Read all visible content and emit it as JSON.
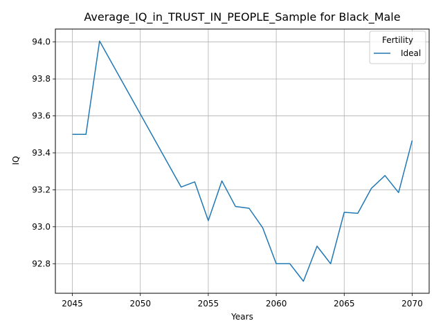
{
  "chart_data": {
    "type": "line",
    "title": "Average_IQ_in_TRUST_IN_PEOPLE_Sample for Black_Male",
    "xlabel": "Years",
    "ylabel": "IQ",
    "xlim": [
      2043.75,
      2071.25
    ],
    "ylim": [
      92.64,
      94.07
    ],
    "xticks": [
      2045,
      2050,
      2055,
      2060,
      2065,
      2070
    ],
    "yticks": [
      92.8,
      93.0,
      93.2,
      93.4,
      93.6,
      93.8,
      94.0
    ],
    "ytick_labels": [
      "92.8",
      "93.0",
      "93.2",
      "93.4",
      "93.6",
      "93.8",
      "94.0"
    ],
    "grid": true,
    "legend": {
      "title": "Fertility",
      "placement": "top-right"
    },
    "x": [
      2045,
      2046,
      2047,
      2053,
      2054,
      2055,
      2056,
      2057,
      2058,
      2059,
      2060,
      2061,
      2062,
      2063,
      2064,
      2065,
      2066,
      2067,
      2068,
      2069,
      2070
    ],
    "series": [
      {
        "name": "Ideal",
        "color": "#1f77b4",
        "values": [
          93.5,
          93.5,
          94.005,
          93.215,
          93.243,
          93.033,
          93.248,
          93.11,
          93.1,
          92.995,
          92.8,
          92.8,
          92.705,
          92.895,
          92.8,
          93.078,
          93.073,
          93.208,
          93.277,
          93.185,
          93.467
        ]
      }
    ]
  }
}
